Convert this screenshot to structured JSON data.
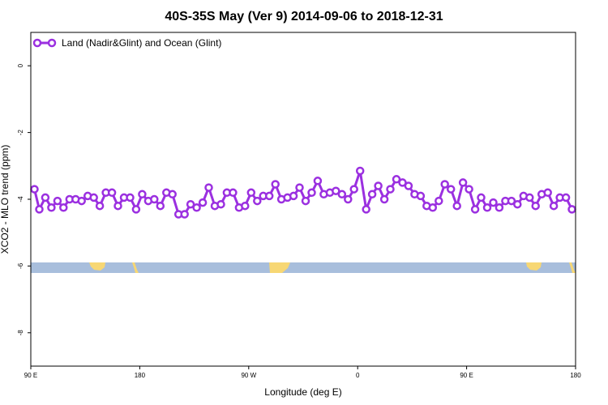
{
  "chart_data": {
    "type": "line",
    "title": "40S-35S May (Ver 9)   2014-09-06 to 2018-12-31",
    "xlabel": "Longitude (deg E)",
    "ylabel": "XCO2 - MLO trend (ppm)",
    "xlim": [
      90,
      540
    ],
    "ylim": [
      -9,
      1
    ],
    "x_ticks": [
      {
        "value": 90,
        "label": "90 E"
      },
      {
        "value": 180,
        "label": "180"
      },
      {
        "value": 270,
        "label": "90 W"
      },
      {
        "value": 360,
        "label": "0"
      },
      {
        "value": 450,
        "label": "90 E"
      },
      {
        "value": 540,
        "label": "180"
      }
    ],
    "y_ticks": [
      {
        "value": 0,
        "label": "0"
      },
      {
        "value": -2,
        "label": "-2"
      },
      {
        "value": -4,
        "label": "-4"
      },
      {
        "value": -6,
        "label": "-6"
      },
      {
        "value": -8,
        "label": "-8"
      }
    ],
    "legend": {
      "position": "top-left"
    },
    "colors": {
      "series": "#9b30e0",
      "ocean_band": "#a8bedc",
      "land_band": "#f7d774"
    },
    "series": [
      {
        "name": "Land (Nadir&Glint) and Ocean (Glint)",
        "x": [
          93,
          97,
          102,
          107,
          112,
          117,
          122,
          127,
          132,
          137,
          142,
          147,
          152,
          157,
          162,
          167,
          172,
          177,
          182,
          187,
          192,
          197,
          202,
          207,
          212,
          217,
          222,
          227,
          232,
          237,
          242,
          247,
          252,
          257,
          262,
          267,
          272,
          277,
          282,
          287,
          292,
          297,
          302,
          307,
          312,
          317,
          322,
          327,
          332,
          337,
          342,
          347,
          352,
          357,
          362,
          367,
          372,
          377,
          382,
          387,
          392,
          397,
          402,
          407,
          412,
          417,
          422,
          427,
          432,
          437,
          442,
          447,
          452,
          457,
          462,
          467,
          472,
          477,
          482,
          487,
          492,
          497,
          502,
          507,
          512,
          517,
          522,
          527,
          532,
          537
        ],
        "values": [
          -3.7,
          -4.3,
          -3.95,
          -4.25,
          -4.05,
          -4.25,
          -4.0,
          -4.0,
          -4.05,
          -3.9,
          -3.95,
          -4.2,
          -3.8,
          -3.8,
          -4.2,
          -3.95,
          -3.95,
          -4.3,
          -3.85,
          -4.05,
          -4.0,
          -4.2,
          -3.8,
          -3.85,
          -4.45,
          -4.45,
          -4.15,
          -4.25,
          -4.1,
          -3.65,
          -4.2,
          -4.15,
          -3.8,
          -3.8,
          -4.25,
          -4.2,
          -3.8,
          -4.05,
          -3.9,
          -3.9,
          -3.55,
          -4.0,
          -3.95,
          -3.9,
          -3.65,
          -4.05,
          -3.8,
          -3.45,
          -3.85,
          -3.8,
          -3.75,
          -3.85,
          -4.0,
          -3.7,
          -3.15,
          -4.3,
          -3.85,
          -3.6,
          -4.0,
          -3.7,
          -3.4,
          -3.5,
          -3.6,
          -3.85,
          -3.9,
          -4.2,
          -4.25,
          -4.05,
          -3.55,
          -3.7,
          -4.2,
          -3.5,
          -3.7,
          -4.3,
          -3.95,
          -4.25,
          -4.1,
          -4.25,
          -4.05,
          -4.05,
          -4.15,
          -3.9,
          -3.95,
          -4.2,
          -3.85,
          -3.8,
          -4.2,
          -3.95,
          -3.95,
          -4.3
        ]
      }
    ]
  }
}
